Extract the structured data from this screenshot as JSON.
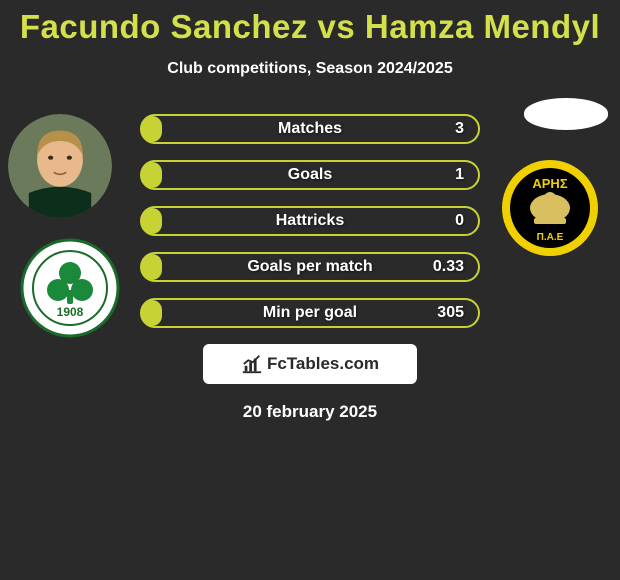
{
  "background_color": "#2a2a2a",
  "title": "Facundo Sanchez vs Hamza Mendyl",
  "title_color": "#d3e04a",
  "subtitle": "Club competitions, Season 2024/2025",
  "subtitle_color": "#ffffff",
  "stats": {
    "bar_bg": "#2a2a2a",
    "bar_border": "#c7d334",
    "fill_color": "#c7d334",
    "label_color": "#ffffff",
    "value_color": "#ffffff",
    "rows": [
      {
        "label": "Matches",
        "value": "3",
        "fill_pct": 6
      },
      {
        "label": "Goals",
        "value": "1",
        "fill_pct": 6
      },
      {
        "label": "Hattricks",
        "value": "0",
        "fill_pct": 6
      },
      {
        "label": "Goals per match",
        "value": "0.33",
        "fill_pct": 6
      },
      {
        "label": "Min per goal",
        "value": "305",
        "fill_pct": 6
      }
    ]
  },
  "player_left": {
    "skin": "#e8b98a",
    "hair": "#b8904a",
    "jersey": "#0c2e1a"
  },
  "club_left": {
    "ring_bg": "#ffffff",
    "ring_border": "#1a6b2a",
    "clover": "#1a8a3a",
    "year": "1908",
    "year_color": "#1a6b2a"
  },
  "club_right": {
    "outer": "#f0d000",
    "inner": "#000000",
    "figure": "#d8c060",
    "text": "ΑΡΗΣ",
    "text2": "Π.Α.Ε"
  },
  "branding": {
    "bg": "#ffffff",
    "text": "FcTables.com",
    "text_color": "#2a2a2a",
    "icon_color": "#2a2a2a"
  },
  "datestamp": "20 february 2025",
  "datestamp_color": "#ffffff"
}
